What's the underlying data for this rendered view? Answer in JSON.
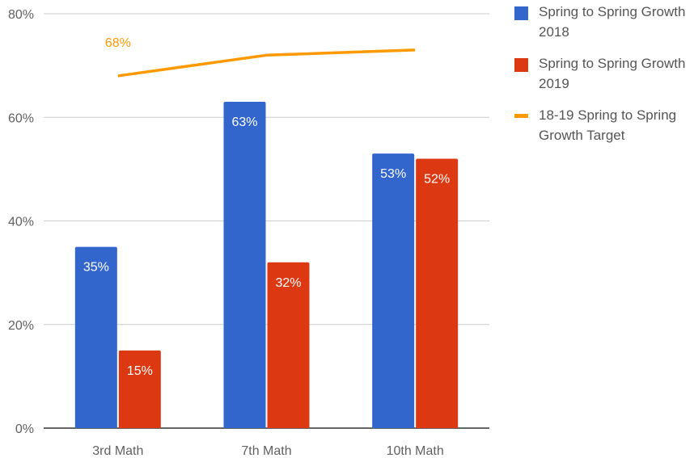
{
  "chart_data": {
    "type": "bar",
    "categories": [
      "3rd Math",
      "7th Math",
      "10th Math"
    ],
    "series": [
      {
        "name": "Spring to Spring Growth 2018",
        "type": "bar",
        "color": "#3366cc",
        "values": [
          35,
          63,
          53
        ],
        "labels": [
          "35%",
          "63%",
          "53%"
        ]
      },
      {
        "name": "Spring to Spring Growth 2019",
        "type": "bar",
        "color": "#dc3912",
        "values": [
          15,
          32,
          52
        ],
        "labels": [
          "15%",
          "32%",
          "52%"
        ]
      },
      {
        "name": "18-19 Spring to Spring Growth Target",
        "type": "line",
        "color": "#ff9900",
        "values": [
          68,
          72,
          73
        ],
        "labels": [
          "68%",
          "",
          ""
        ]
      }
    ],
    "y_ticks": [
      "0%",
      "20%",
      "40%",
      "60%",
      "80%"
    ],
    "ylim": [
      0,
      80
    ],
    "grid": true,
    "legend_position": "right",
    "title": "",
    "xlabel": "",
    "ylabel": ""
  }
}
